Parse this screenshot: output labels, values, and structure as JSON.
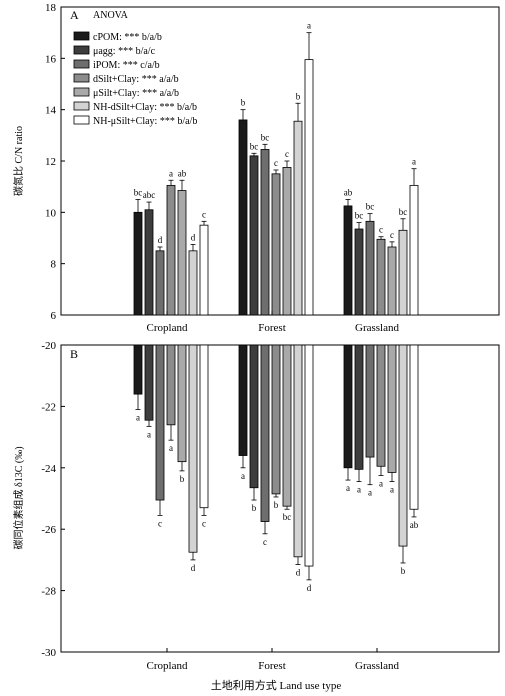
{
  "figure": {
    "x_title": "土地利用方式 Land use type",
    "categories": [
      "Cropland",
      "Forest",
      "Grassland"
    ],
    "legend_title": "ANOVA"
  },
  "series_styles": [
    {
      "name": "cPOM",
      "label": "cPOM: *** b/a/b",
      "fill": "#1a1a1a"
    },
    {
      "name": "μagg",
      "label": "μagg: *** b/a/c",
      "fill": "#3d3d3d"
    },
    {
      "name": "iPOM",
      "label": "iPOM: *** c/a/b",
      "fill": "#6e6e6e"
    },
    {
      "name": "dSilt+Clay",
      "label": "dSilt+Clay: *** a/a/b",
      "fill": "#8c8c8c"
    },
    {
      "name": "μSilt+Clay",
      "label": "μSilt+Clay: *** a/a/b",
      "fill": "#a9a9a9"
    },
    {
      "name": "NH-dSilt+Clay",
      "label": "NH-dSilt+Clay: *** b/a/b",
      "fill": "#d3d3d3"
    },
    {
      "name": "NH-μSilt+Clay",
      "label": "NH-μSilt+Clay: *** b/a/b",
      "fill": "#ffffff"
    }
  ],
  "chart_data": [
    {
      "panel": "A",
      "type": "bar",
      "ylabel": "碳氮比 C/N ratio",
      "ylim": [
        6,
        18
      ],
      "yticks": [
        6,
        8,
        10,
        12,
        14,
        16,
        18
      ],
      "categories": [
        "Cropland",
        "Forest",
        "Grassland"
      ],
      "series": [
        {
          "name": "cPOM",
          "values": [
            10.0,
            13.6,
            10.25
          ],
          "errors": [
            0.5,
            0.4,
            0.25
          ],
          "letters": [
            "bc",
            "b",
            "ab"
          ]
        },
        {
          "name": "μagg",
          "values": [
            10.1,
            12.2,
            9.35
          ],
          "errors": [
            0.3,
            0.1,
            0.25
          ],
          "letters": [
            "abc",
            "bc",
            "bc"
          ]
        },
        {
          "name": "iPOM",
          "values": [
            8.5,
            12.45,
            9.65
          ],
          "errors": [
            0.15,
            0.2,
            0.3
          ],
          "letters": [
            "d",
            "bc",
            "bc"
          ]
        },
        {
          "name": "dSilt+Clay",
          "values": [
            11.05,
            11.5,
            8.95
          ],
          "errors": [
            0.2,
            0.15,
            0.1
          ],
          "letters": [
            "a",
            "c",
            "c"
          ]
        },
        {
          "name": "μSilt+Clay",
          "values": [
            10.85,
            11.75,
            8.65
          ],
          "errors": [
            0.4,
            0.25,
            0.2
          ],
          "letters": [
            "ab",
            "c",
            "c"
          ]
        },
        {
          "name": "NH-dSilt+Clay",
          "values": [
            8.5,
            13.55,
            9.3
          ],
          "errors": [
            0.25,
            0.7,
            0.45
          ],
          "letters": [
            "d",
            "b",
            "bc"
          ]
        },
        {
          "name": "NH-μSilt+Clay",
          "values": [
            9.5,
            15.95,
            11.05
          ],
          "errors": [
            0.15,
            1.05,
            0.65
          ],
          "letters": [
            "c",
            "a",
            "a"
          ]
        }
      ]
    },
    {
      "panel": "B",
      "type": "bar",
      "ylabel": "碳同位素组成 δ13C (‰)",
      "ylim": [
        -30,
        -20
      ],
      "yticks": [
        -20,
        -22,
        -24,
        -26,
        -28,
        -30
      ],
      "categories": [
        "Cropland",
        "Forest",
        "Grassland"
      ],
      "series": [
        {
          "name": "cPOM",
          "values": [
            -21.6,
            -23.6,
            -24.0
          ],
          "errors": [
            0.5,
            0.4,
            0.4
          ],
          "letters": [
            "a",
            "a",
            "a"
          ]
        },
        {
          "name": "μagg",
          "values": [
            -22.45,
            -24.65,
            -24.05
          ],
          "errors": [
            0.2,
            0.4,
            0.4
          ],
          "letters": [
            "a",
            "b",
            "a"
          ]
        },
        {
          "name": "iPOM",
          "values": [
            -25.05,
            -25.75,
            -23.65
          ],
          "errors": [
            0.5,
            0.4,
            0.9
          ],
          "letters": [
            "c",
            "c",
            "a"
          ]
        },
        {
          "name": "dSilt+Clay",
          "values": [
            -22.6,
            -24.85,
            -23.95
          ],
          "errors": [
            0.5,
            0.1,
            0.3
          ],
          "letters": [
            "a",
            "b",
            "a"
          ]
        },
        {
          "name": "μSilt+Clay",
          "values": [
            -23.8,
            -25.25,
            -24.15
          ],
          "errors": [
            0.3,
            0.1,
            0.3
          ],
          "letters": [
            "b",
            "bc",
            "a"
          ]
        },
        {
          "name": "NH-dSilt+Clay",
          "values": [
            -26.75,
            -26.9,
            -26.55
          ],
          "errors": [
            0.25,
            0.25,
            0.55
          ],
          "letters": [
            "d",
            "d",
            "b"
          ]
        },
        {
          "name": "NH-μSilt+Clay",
          "values": [
            -25.3,
            -27.2,
            -25.35
          ],
          "errors": [
            0.25,
            0.45,
            0.25
          ],
          "letters": [
            "c",
            "d",
            "ab"
          ]
        }
      ]
    }
  ]
}
